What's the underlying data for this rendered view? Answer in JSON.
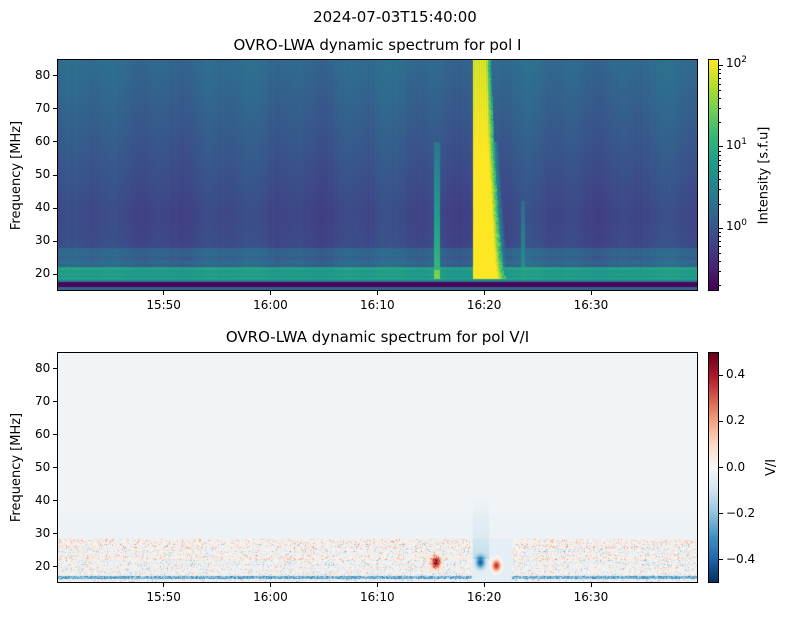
{
  "figure": {
    "suptitle": "2024-07-03T15:40:00"
  },
  "chart_data": [
    {
      "type": "heatmap",
      "title": "OVRO-LWA dynamic spectrum for pol I",
      "xlabel": "",
      "ylabel": "Frequency [MHz]",
      "xlim": [
        "15:40",
        "16:40"
      ],
      "ylim": [
        15,
        85
      ],
      "xticks": [
        "15:50",
        "16:00",
        "16:10",
        "16:20",
        "16:30"
      ],
      "yticks": [
        "20",
        "30",
        "40",
        "50",
        "60",
        "70",
        "80"
      ],
      "colormap": "viridis",
      "colorbar": {
        "label": "Intensity [s.f.u]",
        "scale": "log",
        "range": [
          0.17,
          120
        ],
        "ticks": [
          {
            "base": "10",
            "exp": "0",
            "value": 1
          },
          {
            "base": "10",
            "exp": "1",
            "value": 10
          },
          {
            "base": "10",
            "exp": "2",
            "value": 100
          }
        ]
      },
      "background": {
        "low_band_MHz": [
          18,
          22
        ],
        "low_band_sfu": 6,
        "quiet_sfu_40MHz": 0.7,
        "quiet_sfu_80MHz": 1.5,
        "dark_band_MHz": [
          16,
          17.3
        ]
      },
      "bursts": [
        {
          "start": "16:19:00",
          "end_high_freq": "16:20:40",
          "end_low_freq": "16:22:10",
          "freq_range_MHz": [
            18.5,
            85
          ],
          "peak_sfu": 120
        },
        {
          "start": "16:15:20",
          "end": "16:15:50",
          "freq_range_MHz": [
            18.5,
            60
          ],
          "peak_sfu": 15
        },
        {
          "start": "16:23:30",
          "end": "16:23:50",
          "freq_range_MHz": [
            18.5,
            42
          ],
          "peak_sfu": 5
        }
      ]
    },
    {
      "type": "heatmap",
      "title": "OVRO-LWA dynamic spectrum for pol V/I",
      "xlabel": "",
      "ylabel": "Frequency [MHz]",
      "xlim": [
        "15:40",
        "16:40"
      ],
      "ylim": [
        15,
        85
      ],
      "xticks": [
        "15:50",
        "16:00",
        "16:10",
        "16:20",
        "16:30"
      ],
      "yticks": [
        "20",
        "30",
        "40",
        "50",
        "60",
        "70",
        "80"
      ],
      "colormap": "RdBu_r",
      "colorbar": {
        "label": "V/I",
        "scale": "linear",
        "range": [
          -0.5,
          0.5
        ],
        "ticks": [
          "−0.4",
          "−0.2",
          "0.0",
          "0.2",
          "0.4"
        ],
        "tick_values": [
          -0.4,
          -0.2,
          0,
          0.2,
          0.4
        ]
      },
      "features": [
        {
          "time": "16:19:40",
          "freq_MHz": 21,
          "value": -0.3
        },
        {
          "time": "16:21:10",
          "freq_MHz": 20,
          "value": 0.35
        },
        {
          "time": "16:15:30",
          "freq_MHz": 21,
          "value": 0.4
        }
      ]
    }
  ]
}
